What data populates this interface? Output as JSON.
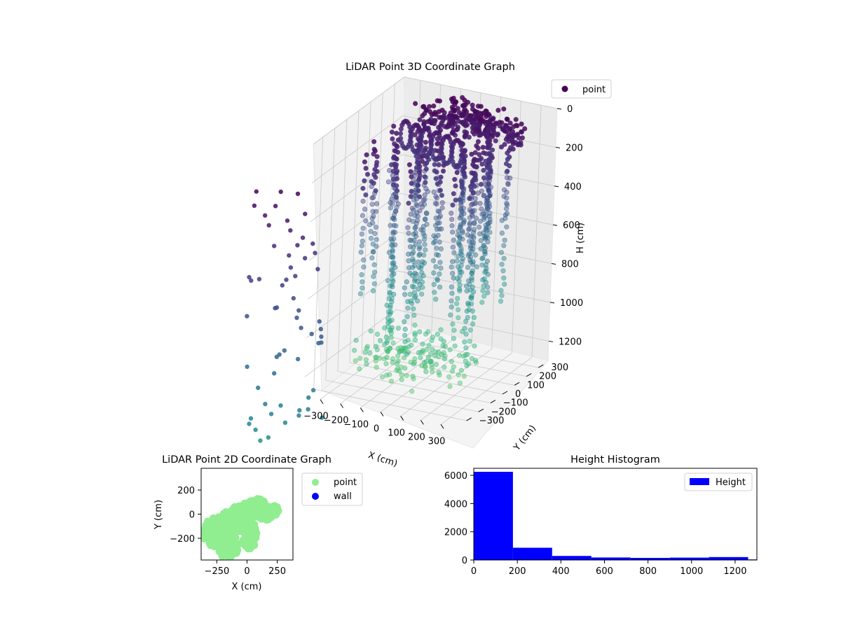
{
  "chart_data": [
    {
      "id": "lidar-3d",
      "type": "scatter",
      "title": "LiDAR Point 3D Coordinate Graph",
      "xlabel": "X (cm)",
      "ylabel": "Y (cm)",
      "zlabel": "H (cm)",
      "x_ticks": [
        "−300",
        "−200",
        "−100",
        "0",
        "100",
        "200",
        "300"
      ],
      "y_ticks": [
        "−300",
        "−200",
        "−100",
        "0",
        "100",
        "200",
        "300"
      ],
      "z_ticks": [
        "0",
        "200",
        "400",
        "600",
        "800",
        "1000",
        "1200"
      ],
      "xlim": [
        -380,
        380
      ],
      "ylim": [
        -380,
        380
      ],
      "zlim": [
        0,
        1300
      ],
      "z_inverted": true,
      "colormap": "viridis",
      "legend": {
        "placement": "upper-right",
        "entries": [
          {
            "label": "point",
            "color": "#440154"
          }
        ]
      },
      "grid": true
    },
    {
      "id": "lidar-2d",
      "type": "scatter",
      "title": "LiDAR Point 2D Coordinate Graph",
      "xlabel": "X (cm)",
      "ylabel": "Y (cm)",
      "x_ticks": [
        "−250",
        "0",
        "250"
      ],
      "y_ticks": [
        "200",
        "0",
        "−200"
      ],
      "xlim": [
        -380,
        380
      ],
      "ylim": [
        -380,
        380
      ],
      "legend": {
        "placement": "outside-right",
        "entries": [
          {
            "label": "point",
            "color": "#90ee90"
          },
          {
            "label": "wall",
            "color": "#0000ff"
          }
        ]
      },
      "series": [
        {
          "name": "point",
          "color": "#90ee90"
        },
        {
          "name": "wall",
          "color": "#0000ff"
        }
      ]
    },
    {
      "id": "height-hist",
      "type": "bar",
      "title": "Height Histogram",
      "xlim": [
        0,
        1300
      ],
      "ylim": [
        0,
        6500
      ],
      "x_ticks": [
        "0",
        "200",
        "400",
        "600",
        "800",
        "1000",
        "1200"
      ],
      "y_ticks": [
        "0",
        "2000",
        "4000",
        "6000"
      ],
      "x_tick_values": [
        0,
        200,
        400,
        600,
        800,
        1000,
        1200
      ],
      "y_tick_values": [
        0,
        2000,
        4000,
        6000
      ],
      "bin_edges": [
        0,
        180,
        360,
        540,
        720,
        900,
        1080,
        1260,
        1300
      ],
      "values": [
        6250,
        870,
        290,
        180,
        150,
        170,
        210,
        40
      ],
      "color": "#0000ff",
      "legend": {
        "placement": "upper-right",
        "entries": [
          {
            "label": "Height",
            "color": "#0000ff"
          }
        ]
      }
    }
  ]
}
